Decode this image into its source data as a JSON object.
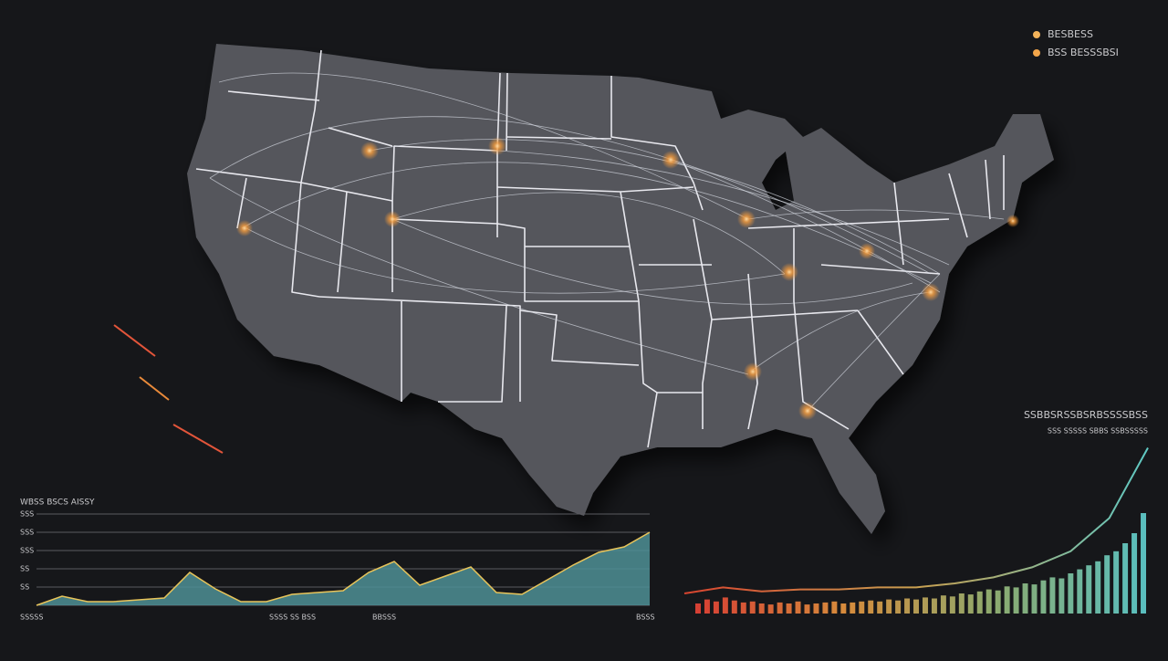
{
  "legend": [
    {
      "label": "BESBESS",
      "color": "#f3b35a"
    },
    {
      "label": "BSS BESSSBSI",
      "color": "#f3a64a"
    }
  ],
  "area_chart": {
    "title": "WBSS BSCS AISSY",
    "ytick_labels": [
      "SSS",
      "SSS",
      "SSS",
      "SS",
      "SS"
    ],
    "x_labels": [
      "SSSSS",
      "SSSS SS BSS",
      "BBSSS",
      "BSSS"
    ],
    "values": [
      0,
      0.5,
      0.2,
      0.2,
      0.3,
      0.4,
      1.8,
      0.9,
      0.2,
      0.2,
      0.6,
      0.7,
      0.8,
      1.8,
      2.4,
      1.1,
      1.6,
      2.1,
      0.7,
      0.6,
      1.4,
      2.2,
      2.9,
      3.2,
      4.0
    ],
    "color": "#4d8f95",
    "line_color": "#e8c45a"
  },
  "bar_chart": {
    "title": "SSBBSRSSBSRBSSSSBSS",
    "subtitle": "SSS SSSSS SBBS SSBSSSSS",
    "bars": [
      10,
      14,
      12,
      16,
      13,
      11,
      12,
      10,
      9,
      11,
      10,
      12,
      9,
      10,
      11,
      12,
      10,
      11,
      12,
      13,
      12,
      14,
      13,
      15,
      14,
      16,
      15,
      18,
      17,
      20,
      19,
      22,
      24,
      23,
      27,
      26,
      30,
      29,
      33,
      36,
      35,
      40,
      44,
      48,
      52,
      58,
      62,
      70,
      80,
      100
    ],
    "line": [
      20,
      26,
      22,
      24,
      24,
      26,
      26,
      30,
      36,
      46,
      62,
      95,
      165
    ]
  }
}
